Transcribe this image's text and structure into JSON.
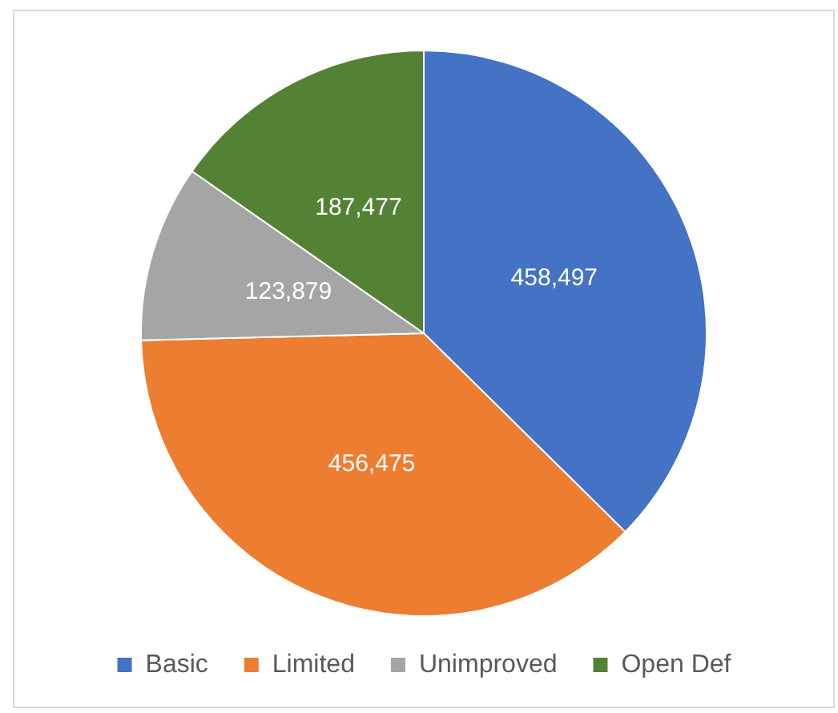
{
  "chart_data": {
    "type": "pie",
    "categories": [
      "Basic",
      "Limited",
      "Unimproved",
      "Open Def"
    ],
    "values": [
      458497,
      456475,
      123879,
      187477
    ],
    "value_labels": [
      "458,497",
      "456,475",
      "123,879",
      "187,477"
    ],
    "colors": [
      "#4472c4",
      "#ed7d31",
      "#a5a5a5",
      "#548235"
    ],
    "legend": "bottom"
  }
}
